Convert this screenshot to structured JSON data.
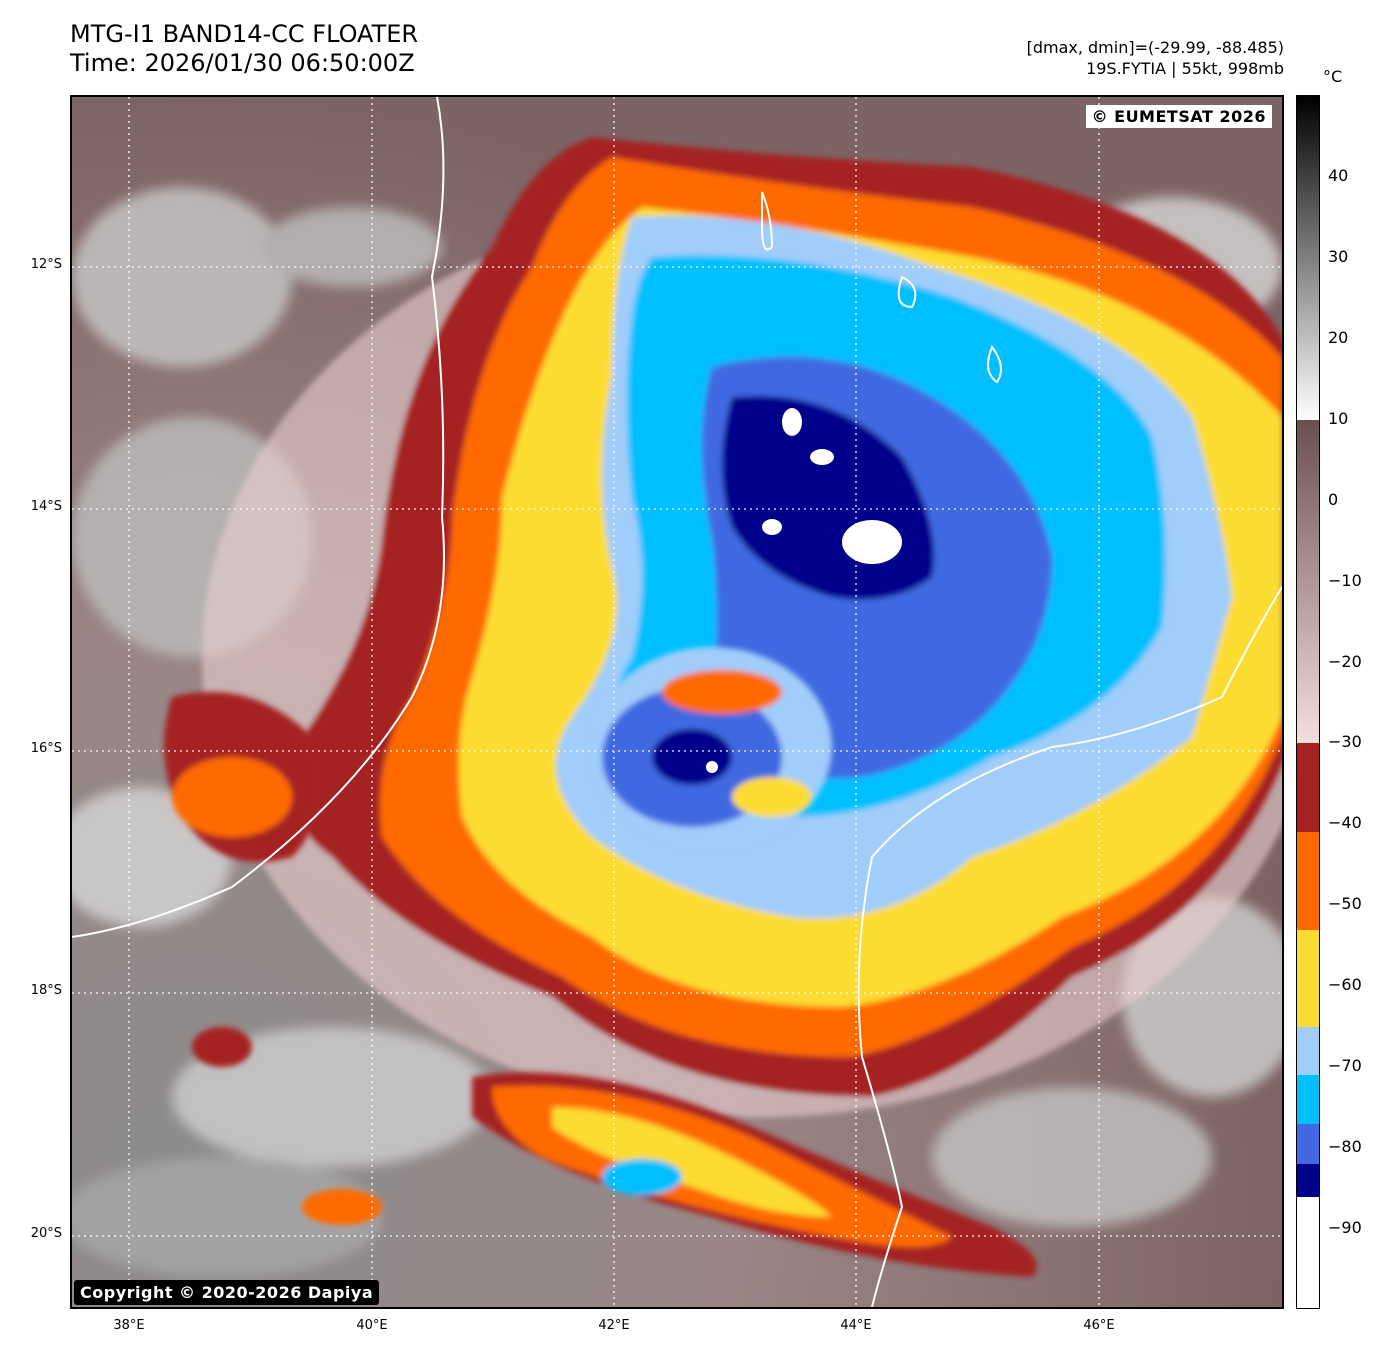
{
  "header": {
    "title_line1": "MTG-I1 BAND14-CC FLOATER",
    "title_line2": "Time: 2026/01/30 06:50:00Z",
    "info_line1": "[dmax, dmin]=(-29.99, -88.485)",
    "info_line2": "19S.FYTIA | 55kt, 998mb"
  },
  "map": {
    "copyright_top": "© EUMETSAT 2026",
    "copyright_bottom": "Copyright © 2020-2026 Dapiya",
    "lat_labels": [
      "12°S",
      "14°S",
      "16°S",
      "18°S",
      "20°S"
    ],
    "lon_labels": [
      "38°E",
      "40°E",
      "42°E",
      "44°E",
      "46°E"
    ]
  },
  "colorbar": {
    "unit": "°C",
    "ticks": [
      "40",
      "30",
      "20",
      "10",
      "0",
      "−10",
      "−20",
      "−30",
      "−40",
      "−50",
      "−60",
      "−70",
      "−80",
      "−90"
    ],
    "bands": [
      {
        "from": 50,
        "to": 10,
        "color": "#000000",
        "to_color": "#ffffff",
        "gradient": true
      },
      {
        "from": 10,
        "to": -30,
        "color": "#6b4f4f",
        "to_color": "#f5dede",
        "gradient": true
      },
      {
        "from": -30,
        "to": -41,
        "color": "#a52422"
      },
      {
        "from": -41,
        "to": -53,
        "color": "#ff6a00"
      },
      {
        "from": -53,
        "to": -65,
        "color": "#fddc32"
      },
      {
        "from": -65,
        "to": -71,
        "color": "#a0cdfa"
      },
      {
        "from": -71,
        "to": -77,
        "color": "#00bfff"
      },
      {
        "from": -77,
        "to": -82,
        "color": "#4169e1"
      },
      {
        "from": -82,
        "to": -86,
        "color": "#00008b"
      },
      {
        "from": -86,
        "to": -100,
        "color": "#ffffff"
      }
    ]
  }
}
